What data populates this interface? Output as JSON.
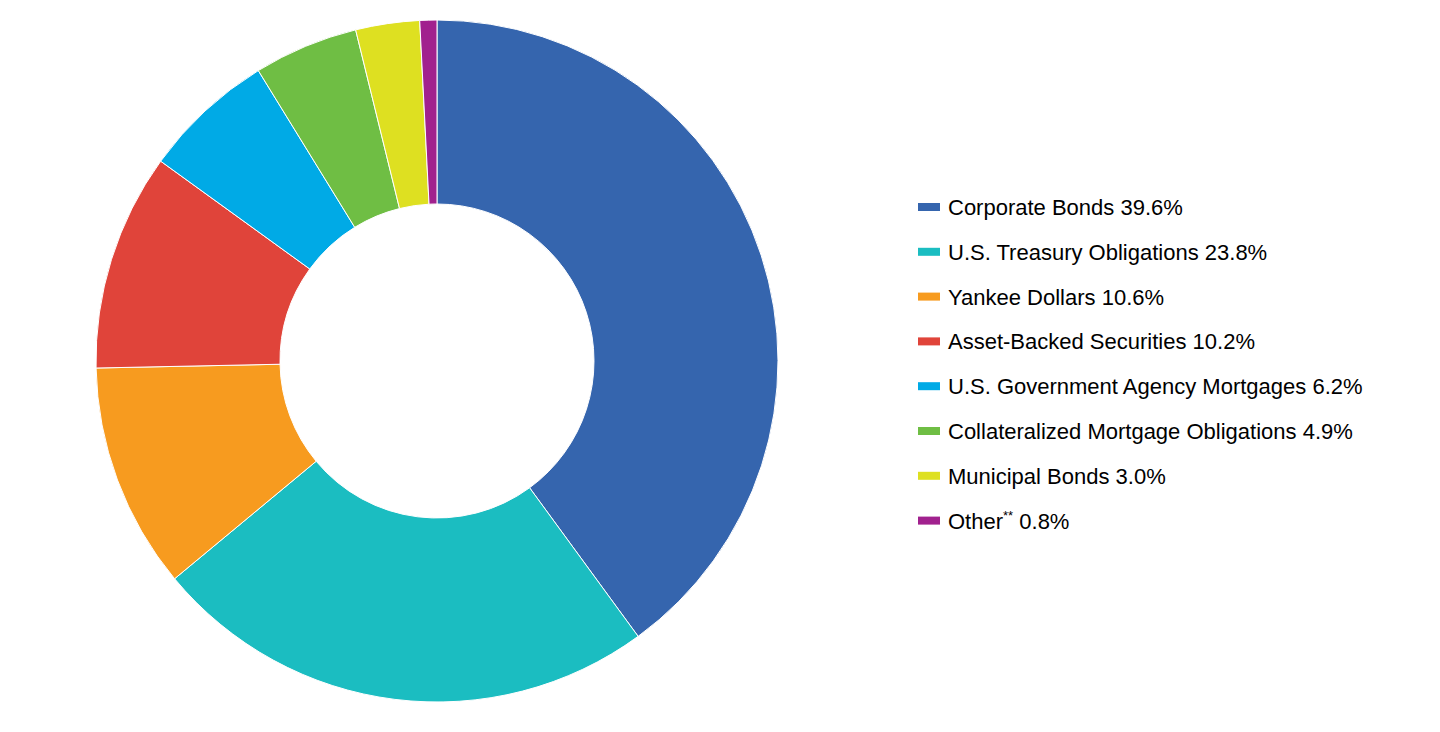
{
  "chart_data": {
    "type": "pie",
    "categories": [
      "Corporate Bonds",
      "U.S. Treasury Obligations",
      "Yankee Dollars",
      "Asset-Backed Securities",
      "U.S. Government Agency Mortgages",
      "Collateralized Mortgage Obligations",
      "Municipal Bonds",
      "Other**"
    ],
    "values": [
      39.6,
      23.8,
      10.6,
      10.2,
      6.2,
      4.9,
      3.0,
      0.8
    ],
    "value_labels": [
      "39.6%",
      "23.8%",
      "10.6%",
      "10.2%",
      "6.2%",
      "4.9%",
      "3.0%",
      "0.8%"
    ],
    "colors": [
      "#3565ae",
      "#1bbdc1",
      "#f79b1f",
      "#e0443a",
      "#00aae6",
      "#6fbe44",
      "#dee021",
      "#a1218e"
    ],
    "legend": "right"
  }
}
